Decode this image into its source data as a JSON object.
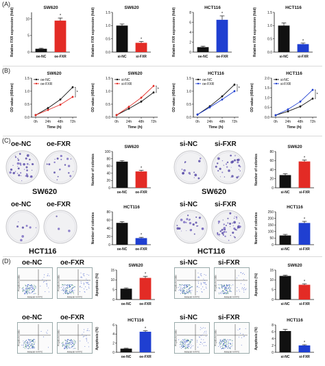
{
  "panel_letters": [
    "(A)",
    "(B)",
    "(C)",
    "(D)"
  ],
  "colors": {
    "black": "#111111",
    "red": "#e32b25",
    "blue": "#1f3fd1"
  },
  "clonogenic": {
    "group_labels": [
      "oe-NC",
      "oe-FXR",
      "si-NC",
      "si-FXR"
    ],
    "cell_lines": [
      "SW620",
      "HCT116"
    ]
  },
  "flow": {
    "group_labels": [
      "oe-NC",
      "oe-FXR",
      "si-NC",
      "si-FXR"
    ],
    "xlabel": "Annexin V-FITC",
    "ylabel": "Propidium Iodide"
  },
  "chart_data": [
    {
      "id": "A1",
      "type": "bar",
      "title": "SW620",
      "ylabel": "Relative FXR expression (fold)",
      "ylim": [
        0,
        12
      ],
      "yticks": [
        0,
        5,
        10
      ],
      "categories": [
        "oe-NC",
        "oe-FXR"
      ],
      "values": [
        1.0,
        9.5
      ],
      "errors": [
        0.2,
        0.8
      ],
      "colors": [
        "black",
        "red"
      ],
      "sig": [
        false,
        true
      ]
    },
    {
      "id": "A2",
      "type": "bar",
      "title": "SW620",
      "ylabel": "Relative FXR expression (fold)",
      "ylim": [
        0,
        1.5
      ],
      "yticks": [
        0.0,
        0.5,
        1.0,
        1.5
      ],
      "categories": [
        "si-NC",
        "si-FXR"
      ],
      "values": [
        1.0,
        0.35
      ],
      "errors": [
        0.06,
        0.05
      ],
      "colors": [
        "black",
        "red"
      ],
      "sig": [
        false,
        true
      ]
    },
    {
      "id": "A3",
      "type": "bar",
      "title": "HCT116",
      "ylabel": "Relative FXR expression (fold)",
      "ylim": [
        0,
        8
      ],
      "yticks": [
        0,
        2,
        4,
        6,
        8
      ],
      "categories": [
        "oe-NC",
        "oe-FXR"
      ],
      "values": [
        1.0,
        6.5
      ],
      "errors": [
        0.2,
        0.8
      ],
      "colors": [
        "black",
        "blue"
      ],
      "sig": [
        false,
        true
      ]
    },
    {
      "id": "A4",
      "type": "bar",
      "title": "HCT116",
      "ylabel": "Relative FXR expression (fold)",
      "ylim": [
        0,
        1.5
      ],
      "yticks": [
        0.0,
        0.5,
        1.0,
        1.5
      ],
      "categories": [
        "si-NC",
        "si-FXR"
      ],
      "values": [
        1.0,
        0.3
      ],
      "errors": [
        0.1,
        0.04
      ],
      "colors": [
        "black",
        "blue"
      ],
      "sig": [
        false,
        true
      ]
    },
    {
      "id": "B1",
      "type": "line",
      "title": "SW620",
      "xlabel": "Time (h)",
      "ylabel": "OD value (450nm)",
      "ylim": [
        0,
        1.5
      ],
      "yticks": [
        0.0,
        0.5,
        1.0,
        1.5
      ],
      "x": [
        "0h",
        "24h",
        "48h",
        "72h"
      ],
      "series": [
        {
          "name": "oe-NC",
          "color": "black",
          "values": [
            0.08,
            0.35,
            0.68,
            1.15
          ]
        },
        {
          "name": "oe-FXR",
          "color": "red",
          "values": [
            0.08,
            0.28,
            0.48,
            0.78
          ]
        }
      ]
    },
    {
      "id": "B2",
      "type": "line",
      "title": "SW620",
      "xlabel": "Time (h)",
      "ylabel": "OD value (450nm)",
      "ylim": [
        0,
        1.5
      ],
      "yticks": [
        0.0,
        0.5,
        1.0,
        1.5
      ],
      "x": [
        "0h",
        "24h",
        "48h",
        "72h"
      ],
      "series": [
        {
          "name": "si-NC",
          "color": "black",
          "values": [
            0.08,
            0.33,
            0.6,
            0.95
          ]
        },
        {
          "name": "si-FXR",
          "color": "red",
          "values": [
            0.08,
            0.4,
            0.75,
            1.2
          ]
        }
      ]
    },
    {
      "id": "B3",
      "type": "line",
      "title": "HCT116",
      "xlabel": "Time (h)",
      "ylabel": "OD value (450nm)",
      "ylim": [
        0,
        1.5
      ],
      "yticks": [
        0.0,
        0.5,
        1.0,
        1.5
      ],
      "x": [
        "0h",
        "24h",
        "48h",
        "72h"
      ],
      "series": [
        {
          "name": "oe-NC",
          "color": "black",
          "values": [
            0.1,
            0.42,
            0.8,
            1.25
          ]
        },
        {
          "name": "oe-FXR",
          "color": "blue",
          "values": [
            0.1,
            0.38,
            0.68,
            1.0
          ]
        }
      ]
    },
    {
      "id": "B4",
      "type": "line",
      "title": "HCT116",
      "xlabel": "Time (h)",
      "ylabel": "OD value (450nm)",
      "ylim": [
        0,
        2.0
      ],
      "yticks": [
        0.0,
        0.5,
        1.0,
        1.5,
        2.0
      ],
      "x": [
        "0h",
        "24h",
        "48h",
        "72h"
      ],
      "series": [
        {
          "name": "si-NC",
          "color": "black",
          "values": [
            0.1,
            0.3,
            0.55,
            0.95
          ]
        },
        {
          "name": "si-FXR",
          "color": "blue",
          "values": [
            0.1,
            0.4,
            0.8,
            1.4
          ]
        }
      ]
    },
    {
      "id": "C1",
      "type": "bar",
      "title": "SW620",
      "ylabel": "Number of colonies",
      "ylim": [
        0,
        100
      ],
      "yticks": [
        0,
        20,
        40,
        60,
        80,
        100
      ],
      "categories": [
        "oe-NC",
        "oe-FXR"
      ],
      "values": [
        72,
        45
      ],
      "errors": [
        3,
        3
      ],
      "colors": [
        "black",
        "red"
      ],
      "sig": [
        false,
        true
      ]
    },
    {
      "id": "C2",
      "type": "bar",
      "title": "SW620",
      "ylabel": "Number of colonies",
      "ylim": [
        0,
        80
      ],
      "yticks": [
        0,
        20,
        40,
        60,
        80
      ],
      "categories": [
        "si-NC",
        "si-FXR"
      ],
      "values": [
        28,
        58
      ],
      "errors": [
        3,
        3
      ],
      "colors": [
        "black",
        "red"
      ],
      "sig": [
        false,
        true
      ]
    },
    {
      "id": "C3",
      "type": "bar",
      "title": "HCT116",
      "ylabel": "Number of colonies",
      "ylim": [
        0,
        80
      ],
      "yticks": [
        0,
        20,
        40,
        60,
        80
      ],
      "categories": [
        "oe-NC",
        "oe-FXR"
      ],
      "values": [
        53,
        16
      ],
      "errors": [
        3,
        2
      ],
      "colors": [
        "black",
        "blue"
      ],
      "sig": [
        false,
        true
      ]
    },
    {
      "id": "C4",
      "type": "bar",
      "title": "HCT116",
      "ylabel": "Number of colonies",
      "ylim": [
        0,
        250
      ],
      "yticks": [
        0,
        50,
        100,
        150,
        200,
        250
      ],
      "categories": [
        "si-NC",
        "si-FXR"
      ],
      "values": [
        70,
        165
      ],
      "errors": [
        8,
        12
      ],
      "colors": [
        "black",
        "blue"
      ],
      "sig": [
        false,
        true
      ]
    },
    {
      "id": "D1",
      "type": "bar",
      "title": "SW620",
      "ylabel": "Apoptosis (%)",
      "ylim": [
        0,
        15
      ],
      "yticks": [
        0,
        5,
        10,
        15
      ],
      "categories": [
        "oe-NC",
        "oe-FXR"
      ],
      "values": [
        5.5,
        11
      ],
      "errors": [
        0.4,
        0.8
      ],
      "colors": [
        "black",
        "red"
      ],
      "sig": [
        false,
        true
      ]
    },
    {
      "id": "D2",
      "type": "bar",
      "title": "SW620",
      "ylabel": "Apoptosis (%)",
      "ylim": [
        0,
        15
      ],
      "yticks": [
        0,
        5,
        10,
        15
      ],
      "categories": [
        "si-NC",
        "si-FXR"
      ],
      "values": [
        12,
        7.5
      ],
      "errors": [
        0.4,
        0.5
      ],
      "colors": [
        "black",
        "red"
      ],
      "sig": [
        false,
        true
      ]
    },
    {
      "id": "D3",
      "type": "bar",
      "title": "HCT116",
      "ylabel": "Apoptosis (%)",
      "ylim": [
        0,
        6
      ],
      "yticks": [
        0,
        2,
        4,
        6
      ],
      "categories": [
        "oe-NC",
        "oe-FXR"
      ],
      "values": [
        0.8,
        4.5
      ],
      "errors": [
        0.1,
        0.2
      ],
      "colors": [
        "black",
        "blue"
      ],
      "sig": [
        false,
        true
      ]
    },
    {
      "id": "D4",
      "type": "bar",
      "title": "HCT116",
      "ylabel": "Apoptosis (%)",
      "ylim": [
        0,
        8
      ],
      "yticks": [
        0,
        2,
        4,
        6,
        8
      ],
      "categories": [
        "si-NC",
        "si-FXR"
      ],
      "values": [
        6.2,
        2.0
      ],
      "errors": [
        0.5,
        0.2
      ],
      "colors": [
        "black",
        "blue"
      ],
      "sig": [
        false,
        true
      ]
    }
  ]
}
